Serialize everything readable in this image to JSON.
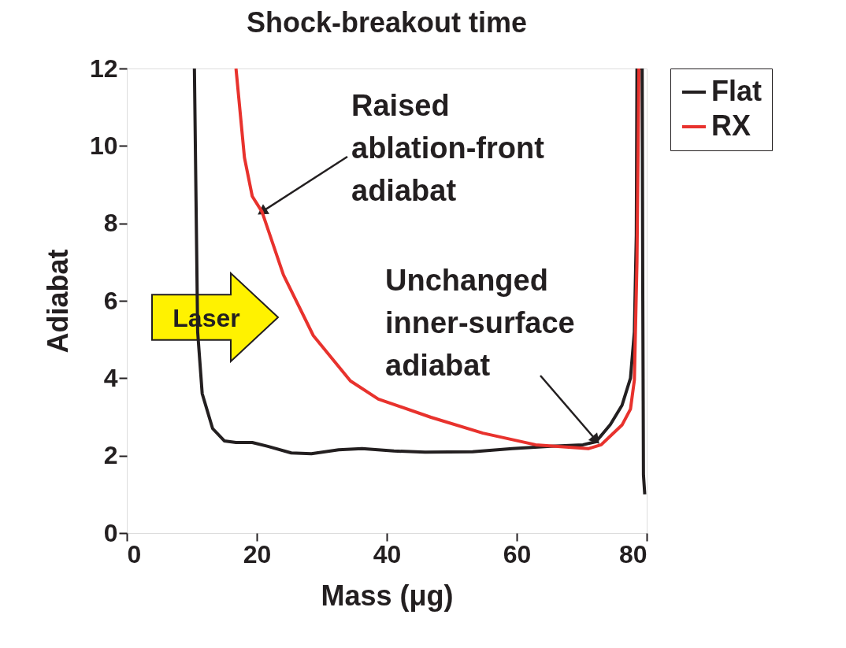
{
  "chart_data": {
    "type": "line",
    "title": "Shock-breakout time",
    "xlabel": "Mass (μg)",
    "ylabel": "Adiabat",
    "xlim": [
      0,
      80
    ],
    "xticks": [
      0,
      20,
      40,
      60,
      80
    ],
    "ylim": [
      0,
      12
    ],
    "yticks": [
      0,
      2,
      4,
      6,
      8,
      10,
      12
    ],
    "grid": false,
    "legend": "top right",
    "marker": "none",
    "line_style": "solid",
    "series": [
      {
        "name": "Flat",
        "color": "#231f20",
        "x": [
          10.4,
          10.9,
          11.6,
          13.2,
          15,
          16.8,
          19.3,
          21.7,
          25.3,
          28.4,
          32.6,
          36.2,
          41.1,
          45.9,
          53.2,
          59.3,
          65.3,
          70.2,
          72.2,
          74.4,
          76.2,
          77.5,
          78.1,
          78.4,
          78.5,
          79.3,
          79.4,
          79.5,
          79.7
        ],
        "values": [
          12,
          5.2,
          3.6,
          2.7,
          2.38,
          2.34,
          2.34,
          2.24,
          2.07,
          2.05,
          2.15,
          2.18,
          2.12,
          2.09,
          2.1,
          2.18,
          2.24,
          2.28,
          2.36,
          2.8,
          3.3,
          4.0,
          5.2,
          7.7,
          12,
          12,
          6,
          1.5,
          1.0
        ]
      },
      {
        "name": "RX",
        "color": "#e8322d",
        "x": [
          16.8,
          18.1,
          19.3,
          20.8,
          24.1,
          28.7,
          34.4,
          38.7,
          46.8,
          54.8,
          62.9,
          71,
          73,
          76.2,
          77.5,
          78.1,
          78.5,
          78.8
        ],
        "values": [
          12,
          9.7,
          8.7,
          8.3,
          6.67,
          5.1,
          3.93,
          3.46,
          2.99,
          2.58,
          2.28,
          2.18,
          2.28,
          2.79,
          3.2,
          3.95,
          7,
          12
        ]
      }
    ],
    "annotations": [
      {
        "text": "Raised\nablation-front\nadiabat",
        "x": 20.8,
        "y": 8.3
      },
      {
        "text": "Unchanged\ninner-surface\nadiabat",
        "x": 72.2,
        "y": 2.4
      },
      "Laser"
    ]
  }
}
